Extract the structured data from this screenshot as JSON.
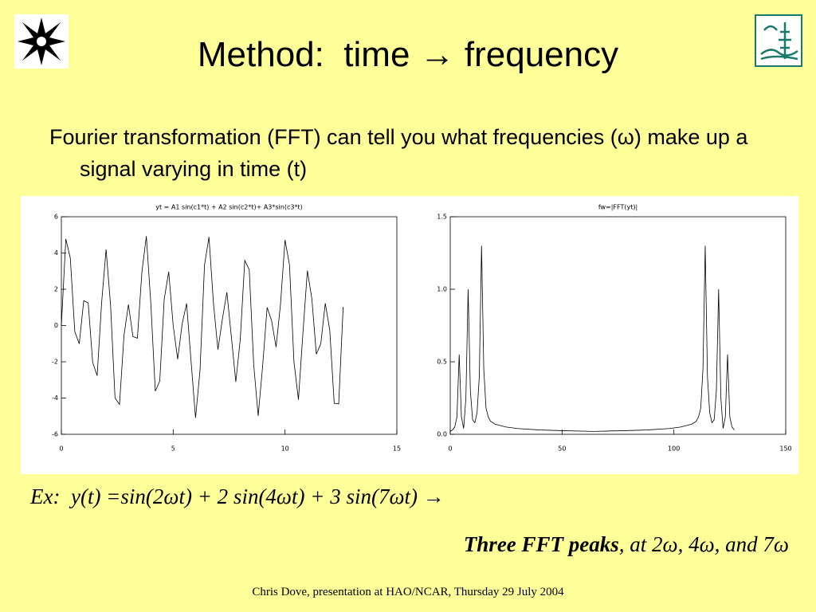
{
  "title": "Method:  time → frequency",
  "bullet": "Fourier transformation (FFT) can tell you what frequencies (ω) make up a signal varying in time (t)",
  "chart_data": [
    {
      "type": "line",
      "title": "yt = A1 sin(c1*t) + A2 sin(c2*t)+ A3*sin(c3*t)",
      "color": "#000000",
      "x": [
        0,
        0.2,
        0.4,
        0.6,
        0.8,
        1.0,
        1.2,
        1.4,
        1.6,
        1.8,
        2.0,
        2.2,
        2.4,
        2.6,
        2.8,
        3.0,
        3.2,
        3.4,
        3.6,
        3.8,
        4.0,
        4.2,
        4.4,
        4.6,
        4.8,
        5.0,
        5.2,
        5.4,
        5.6,
        5.8,
        6.0,
        6.2,
        6.4,
        6.6,
        6.8,
        7.0,
        7.2,
        7.4,
        7.6,
        7.8,
        8.0,
        8.2,
        8.4,
        8.6,
        8.8,
        9.0,
        9.2,
        9.4,
        9.6,
        9.8,
        10.0,
        10.2,
        10.4,
        10.6,
        10.8,
        11.0,
        11.2,
        11.4,
        11.6,
        11.8,
        12.0,
        12.2,
        12.4,
        12.6
      ],
      "values": [
        0,
        4.78,
        3.72,
        -0.33,
        -1.01,
        1.37,
        1.25,
        -2.03,
        -2.77,
        1.25,
        4.2,
        1.12,
        -4.0,
        -4.35,
        -0.55,
        1.16,
        -0.61,
        -0.7,
        2.93,
        4.93,
        1.23,
        -3.62,
        -3.06,
        1.47,
        2.97,
        0.0,
        -1.86,
        0.08,
        1.22,
        -1.98,
        -5.1,
        -2.47,
        3.32,
        4.89,
        1.24,
        -1.33,
        0.36,
        1.84,
        -0.6,
        -3.11,
        -0.75,
        3.59,
        3.08,
        -2.15,
        -4.98,
        -2.23,
        1.0,
        0.27,
        -1.19,
        1.2,
        4.72,
        3.35,
        -2.01,
        -4.09,
        -0.43,
        3.03,
        1.48,
        -1.58,
        -1.0,
        1.23,
        -0.25,
        -4.29,
        -4.32,
        1.03
      ],
      "xlim": [
        0,
        15
      ],
      "xticks": [
        0,
        5,
        10,
        15
      ],
      "ylim": [
        -6,
        6
      ],
      "yticks": [
        -6,
        -4,
        -2,
        0,
        2,
        4,
        6
      ]
    },
    {
      "type": "line",
      "title": "fw=|FFT(yt)|",
      "color": "#000000",
      "x": [
        0,
        1,
        2,
        3,
        4,
        5,
        6,
        7,
        8,
        9,
        10,
        11,
        12,
        13,
        14,
        15,
        16,
        17,
        18,
        20,
        25,
        30,
        40,
        50,
        64,
        78,
        88,
        98,
        103,
        108,
        110,
        111,
        112,
        113,
        114,
        115,
        116,
        117,
        118,
        119,
        120,
        121,
        122,
        123,
        124,
        125,
        126,
        127
      ],
      "values": [
        0.02,
        0.03,
        0.05,
        0.12,
        0.55,
        0.12,
        0.04,
        0.25,
        1.0,
        0.3,
        0.1,
        0.08,
        0.15,
        0.4,
        1.3,
        0.45,
        0.18,
        0.12,
        0.09,
        0.07,
        0.05,
        0.04,
        0.03,
        0.025,
        0.02,
        0.025,
        0.03,
        0.04,
        0.05,
        0.07,
        0.09,
        0.12,
        0.18,
        0.45,
        1.3,
        0.4,
        0.15,
        0.08,
        0.1,
        0.3,
        1.0,
        0.25,
        0.04,
        0.12,
        0.55,
        0.12,
        0.05,
        0.03
      ],
      "xlim": [
        0,
        150
      ],
      "xticks": [
        0,
        50,
        100,
        150
      ],
      "ylim": [
        0,
        1.5
      ],
      "yticks": [
        {
          "value": 0,
          "label": "0.0"
        },
        0.5,
        {
          "value": 1,
          "label": "1.0"
        },
        1.5
      ]
    }
  ],
  "example": "Ex:  y(t) =sin(2ωt) + 2 sin(4ωt) + 3 sin(7ωt) →",
  "peaks_bold": "Three FFT peaks",
  "peaks_rest": ", at 2ω, 4ω, and 7ω",
  "footer": "Chris Dove, presentation at HAO/NCAR, Thursday 29 July 2004"
}
